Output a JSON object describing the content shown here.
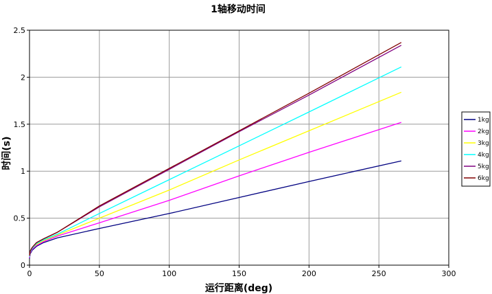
{
  "chart_data": {
    "type": "line",
    "title": "1轴移动时间",
    "xlabel": "运行距离(deg)",
    "ylabel": "时间(s)",
    "xlim": [
      0,
      300
    ],
    "ylim": [
      0,
      2.5
    ],
    "xticks": [
      "0",
      "50",
      "100",
      "150",
      "200",
      "250",
      "300"
    ],
    "yticks": [
      "0",
      "0.5",
      "1",
      "1.5",
      "2",
      "2.5"
    ],
    "grid": true,
    "legend_position": "right",
    "series": [
      {
        "name": "1kg",
        "color": "#000080",
        "points": [
          [
            0,
            0.07
          ],
          [
            0.5,
            0.12
          ],
          [
            2,
            0.16
          ],
          [
            5,
            0.2
          ],
          [
            10,
            0.24
          ],
          [
            20,
            0.29
          ],
          [
            50,
            0.39
          ],
          [
            100,
            0.55
          ],
          [
            150,
            0.72
          ],
          [
            200,
            0.89
          ],
          [
            266,
            1.11
          ]
        ]
      },
      {
        "name": "2kg",
        "color": "#ff00ff",
        "points": [
          [
            0,
            0.08
          ],
          [
            0.5,
            0.13
          ],
          [
            2,
            0.17
          ],
          [
            5,
            0.21
          ],
          [
            10,
            0.25
          ],
          [
            20,
            0.31
          ],
          [
            50,
            0.45
          ],
          [
            100,
            0.69
          ],
          [
            150,
            0.95
          ],
          [
            200,
            1.2
          ],
          [
            266,
            1.52
          ]
        ]
      },
      {
        "name": "3kg",
        "color": "#ffff00",
        "points": [
          [
            0,
            0.09
          ],
          [
            0.5,
            0.14
          ],
          [
            2,
            0.18
          ],
          [
            5,
            0.22
          ],
          [
            10,
            0.26
          ],
          [
            20,
            0.32
          ],
          [
            50,
            0.5
          ],
          [
            100,
            0.8
          ],
          [
            150,
            1.12
          ],
          [
            200,
            1.43
          ],
          [
            266,
            1.84
          ]
        ]
      },
      {
        "name": "4kg",
        "color": "#00ffff",
        "points": [
          [
            0,
            0.09
          ],
          [
            0.5,
            0.14
          ],
          [
            2,
            0.18
          ],
          [
            5,
            0.23
          ],
          [
            10,
            0.27
          ],
          [
            20,
            0.33
          ],
          [
            50,
            0.55
          ],
          [
            100,
            0.91
          ],
          [
            150,
            1.27
          ],
          [
            200,
            1.63
          ],
          [
            266,
            2.11
          ]
        ]
      },
      {
        "name": "5kg",
        "color": "#800080",
        "points": [
          [
            0,
            0.1
          ],
          [
            0.5,
            0.15
          ],
          [
            2,
            0.19
          ],
          [
            5,
            0.24
          ],
          [
            10,
            0.28
          ],
          [
            20,
            0.35
          ],
          [
            50,
            0.62
          ],
          [
            100,
            1.02
          ],
          [
            150,
            1.42
          ],
          [
            200,
            1.81
          ],
          [
            266,
            2.34
          ]
        ]
      },
      {
        "name": "6kg",
        "color": "#800000",
        "points": [
          [
            0,
            0.1
          ],
          [
            0.5,
            0.15
          ],
          [
            2,
            0.19
          ],
          [
            5,
            0.24
          ],
          [
            10,
            0.28
          ],
          [
            20,
            0.35
          ],
          [
            50,
            0.63
          ],
          [
            100,
            1.03
          ],
          [
            150,
            1.43
          ],
          [
            200,
            1.83
          ],
          [
            266,
            2.37
          ]
        ]
      }
    ]
  }
}
